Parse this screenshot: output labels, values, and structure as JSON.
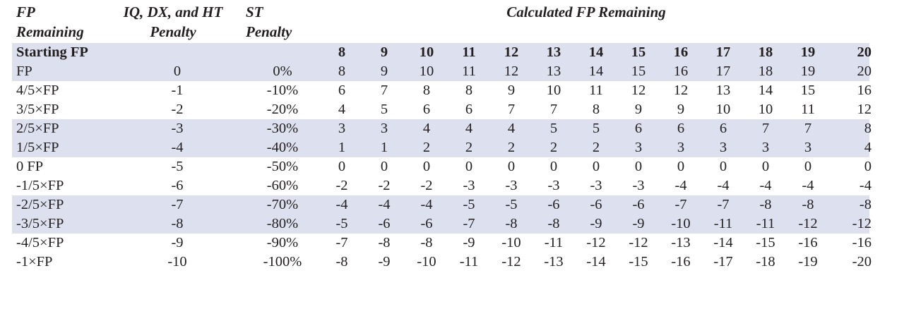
{
  "headers": {
    "col1_line1": "FP",
    "col1_line2": "Remaining",
    "col2_line1": "IQ, DX, and HT",
    "col2_line2": "Penalty",
    "col3_line1": "ST",
    "col3_line2": "Penalty",
    "span_title": "Calculated FP Remaining"
  },
  "colors": {
    "band": "#dde0ee",
    "text": "#231f20"
  },
  "rows": [
    {
      "label": "Starting FP",
      "iq": "",
      "st": "",
      "vals": [
        "8",
        "9",
        "10",
        "11",
        "12",
        "13",
        "14",
        "15",
        "16",
        "17",
        "18",
        "19",
        "20"
      ]
    },
    {
      "label": "FP",
      "iq": "0",
      "st": "0%",
      "vals": [
        "8",
        "9",
        "10",
        "11",
        "12",
        "13",
        "14",
        "15",
        "16",
        "17",
        "18",
        "19",
        "20"
      ]
    },
    {
      "label": "4/5×FP",
      "iq": "-1",
      "st": "-10%",
      "vals": [
        "6",
        "7",
        "8",
        "8",
        "9",
        "10",
        "11",
        "12",
        "12",
        "13",
        "14",
        "15",
        "16"
      ]
    },
    {
      "label": "3/5×FP",
      "iq": "-2",
      "st": "-20%",
      "vals": [
        "4",
        "5",
        "6",
        "6",
        "7",
        "7",
        "8",
        "9",
        "9",
        "10",
        "10",
        "11",
        "12"
      ]
    },
    {
      "label": "2/5×FP",
      "iq": "-3",
      "st": "-30%",
      "vals": [
        "3",
        "3",
        "4",
        "4",
        "4",
        "5",
        "5",
        "6",
        "6",
        "6",
        "7",
        "7",
        "8"
      ]
    },
    {
      "label": "1/5×FP",
      "iq": "-4",
      "st": "-40%",
      "vals": [
        "1",
        "1",
        "2",
        "2",
        "2",
        "2",
        "2",
        "3",
        "3",
        "3",
        "3",
        "3",
        "4"
      ]
    },
    {
      "label": "0 FP",
      "iq": "-5",
      "st": "-50%",
      "vals": [
        "0",
        "0",
        "0",
        "0",
        "0",
        "0",
        "0",
        "0",
        "0",
        "0",
        "0",
        "0",
        "0"
      ]
    },
    {
      "label": "-1/5×FP",
      "iq": "-6",
      "st": "-60%",
      "vals": [
        "-2",
        "-2",
        "-2",
        "-3",
        "-3",
        "-3",
        "-3",
        "-3",
        "-4",
        "-4",
        "-4",
        "-4",
        "-4"
      ]
    },
    {
      "label": "-2/5×FP",
      "iq": "-7",
      "st": "-70%",
      "vals": [
        "-4",
        "-4",
        "-4",
        "-5",
        "-5",
        "-6",
        "-6",
        "-6",
        "-7",
        "-7",
        "-8",
        "-8",
        "-8"
      ]
    },
    {
      "label": "-3/5×FP",
      "iq": "-8",
      "st": "-80%",
      "vals": [
        "-5",
        "-6",
        "-6",
        "-7",
        "-8",
        "-8",
        "-9",
        "-9",
        "-10",
        "-11",
        "-11",
        "-12",
        "-12"
      ]
    },
    {
      "label": "-4/5×FP",
      "iq": "-9",
      "st": "-90%",
      "vals": [
        "-7",
        "-8",
        "-8",
        "-9",
        "-10",
        "-11",
        "-12",
        "-12",
        "-13",
        "-14",
        "-15",
        "-16",
        "-16"
      ]
    },
    {
      "label": "-1×FP",
      "iq": "-10",
      "st": "-100%",
      "vals": [
        "-8",
        "-9",
        "-10",
        "-11",
        "-12",
        "-13",
        "-14",
        "-15",
        "-16",
        "-17",
        "-18",
        "-19",
        "-20"
      ]
    }
  ]
}
